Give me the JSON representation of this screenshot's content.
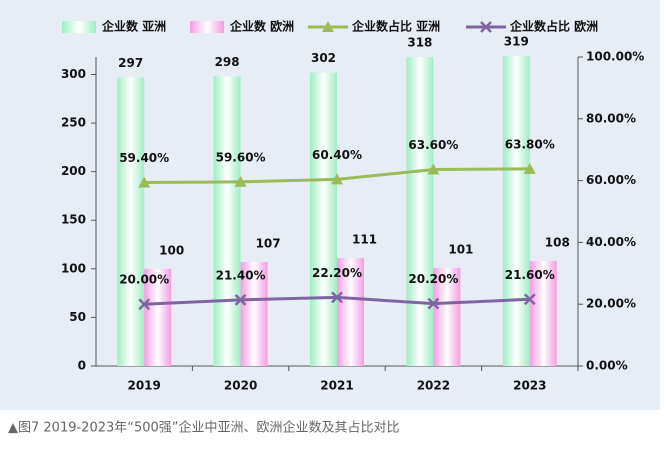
{
  "chart_data": {
    "type": "combo",
    "caption": "▲图7 2019-2023年“500强”企业中亚洲、欧洲企业数及其占比对比",
    "categories": [
      "2019",
      "2020",
      "2021",
      "2022",
      "2023"
    ],
    "legend": "top",
    "ylim": [
      0,
      318
    ],
    "yticks": [
      0,
      50,
      100,
      150,
      200,
      250,
      300
    ],
    "y2lim": [
      0,
      100
    ],
    "y2ticks": [
      {
        "value": 0,
        "label": "0.00%"
      },
      {
        "value": 20,
        "label": "20.00%"
      },
      {
        "value": 40,
        "label": "40.00%"
      },
      {
        "value": 60,
        "label": "60.00%"
      },
      {
        "value": 80,
        "label": "80.00%"
      },
      {
        "value": 100,
        "label": "100.00%"
      }
    ],
    "series": [
      {
        "name": "企业数 亚洲",
        "type": "bar",
        "color": "#9eeec4",
        "values": [
          297,
          298,
          302,
          318,
          319
        ]
      },
      {
        "name": "企业数 欧洲",
        "type": "bar",
        "color": "#f59ce2",
        "values": [
          100,
          107,
          111,
          101,
          108
        ]
      },
      {
        "name": "企业数占比 亚洲",
        "type": "line",
        "marker": "triangle",
        "axis": "y2",
        "color": "#9bbb59",
        "values": [
          59.4,
          59.6,
          60.4,
          63.6,
          63.8
        ],
        "value_labels": [
          "59.40%",
          "59.60%",
          "60.40%",
          "63.60%",
          "63.80%"
        ]
      },
      {
        "name": "企业数占比 欧洲",
        "type": "line",
        "marker": "x",
        "axis": "y2",
        "color": "#8064a2",
        "values": [
          20.0,
          21.4,
          22.2,
          20.2,
          21.6
        ],
        "value_labels": [
          "20.00%",
          "21.40%",
          "22.20%",
          "20.20%",
          "21.60%"
        ]
      }
    ]
  }
}
